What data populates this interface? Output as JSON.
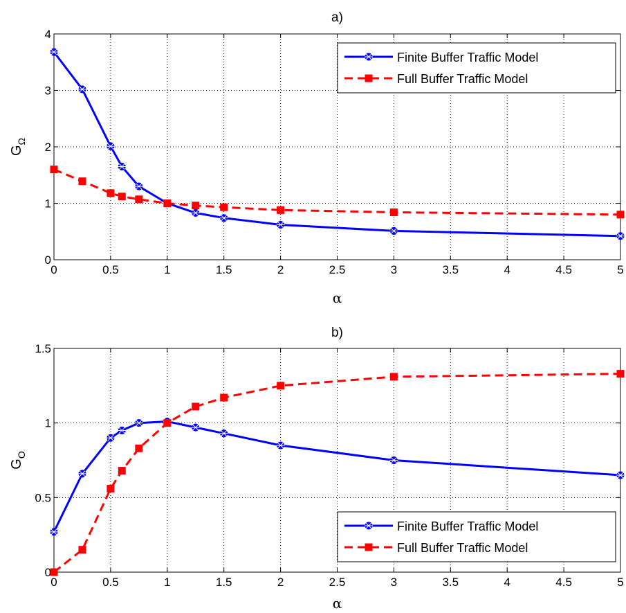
{
  "chart_data": [
    {
      "type": "line",
      "title": "a)",
      "xlabel": "α",
      "ylabel": "G",
      "ylabel_sub": "Ω",
      "xlim": [
        0,
        5
      ],
      "ylim": [
        0,
        4
      ],
      "xticks": [
        "0",
        "0.5",
        "1",
        "1.5",
        "2",
        "2.5",
        "3",
        "3.5",
        "4",
        "4.5",
        "5"
      ],
      "yticks": [
        "0",
        "1",
        "2",
        "3",
        "4"
      ],
      "grid": true,
      "legend_position": "top-right",
      "series": [
        {
          "name": "Finite Buffer Traffic Model",
          "color": "#0000ff",
          "style": "solid",
          "marker": "asterisk-circle",
          "x": [
            0,
            0.25,
            0.5,
            0.6,
            0.75,
            1,
            1.25,
            1.5,
            2,
            3,
            5
          ],
          "y": [
            3.68,
            3.02,
            2.01,
            1.65,
            1.3,
            1.0,
            0.83,
            0.74,
            0.62,
            0.51,
            0.42
          ]
        },
        {
          "name": "Full Buffer Traffic Model",
          "color": "#ff0000",
          "style": "dashed",
          "marker": "square",
          "x": [
            0,
            0.25,
            0.5,
            0.6,
            0.75,
            1,
            1.25,
            1.5,
            2,
            3,
            5
          ],
          "y": [
            1.6,
            1.39,
            1.18,
            1.12,
            1.07,
            1.0,
            0.96,
            0.93,
            0.88,
            0.84,
            0.8
          ]
        }
      ]
    },
    {
      "type": "line",
      "title": "b)",
      "xlabel": "α",
      "ylabel": "G",
      "ylabel_sub": "O",
      "xlim": [
        0,
        5
      ],
      "ylim": [
        0,
        1.5
      ],
      "xticks": [
        "0",
        "0.5",
        "1",
        "1.5",
        "2",
        "2.5",
        "3",
        "3.5",
        "4",
        "4.5",
        "5"
      ],
      "yticks": [
        "0",
        "0.5",
        "1",
        "1.5"
      ],
      "grid": true,
      "legend_position": "bottom-right",
      "series": [
        {
          "name": "Finite Buffer Traffic Model",
          "color": "#0000ff",
          "style": "solid",
          "marker": "asterisk-circle",
          "x": [
            0,
            0.25,
            0.5,
            0.6,
            0.75,
            1,
            1.25,
            1.5,
            2,
            3,
            5
          ],
          "y": [
            0.27,
            0.66,
            0.9,
            0.95,
            1.0,
            1.01,
            0.97,
            0.93,
            0.85,
            0.75,
            0.65
          ]
        },
        {
          "name": "Full Buffer Traffic Model",
          "color": "#ff0000",
          "style": "dashed",
          "marker": "square",
          "x": [
            0,
            0.25,
            0.5,
            0.6,
            0.75,
            1,
            1.25,
            1.5,
            2,
            3,
            5
          ],
          "y": [
            0.0,
            0.15,
            0.56,
            0.68,
            0.83,
            1.0,
            1.11,
            1.17,
            1.25,
            1.31,
            1.33
          ]
        }
      ]
    }
  ]
}
